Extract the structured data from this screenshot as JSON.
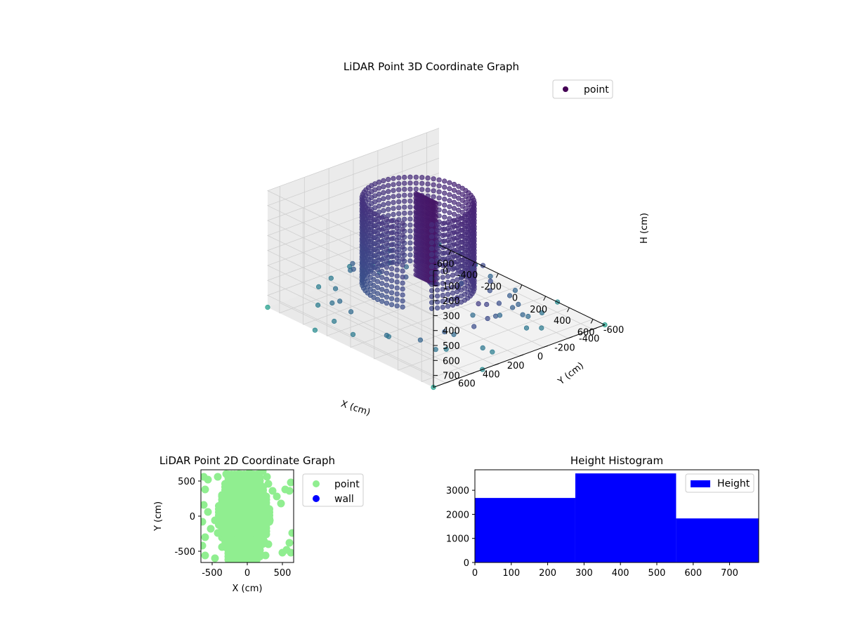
{
  "chart_data": [
    {
      "type": "scatter3d",
      "title": "LiDAR Point 3D Coordinate Graph",
      "xlabel": "X (cm)",
      "ylabel": "Y (cm)",
      "zlabel": "H (cm)",
      "xlim": [
        -700,
        700
      ],
      "ylim": [
        -700,
        700
      ],
      "zlim": [
        0,
        780
      ],
      "zinverted": true,
      "xticks": [
        -600,
        -400,
        -200,
        0,
        200,
        400,
        600
      ],
      "yticks": [
        -600,
        -400,
        -200,
        0,
        200,
        400,
        600
      ],
      "zticks": [
        0,
        100,
        200,
        300,
        400,
        500,
        600,
        700
      ],
      "grid": true,
      "legend": {
        "position": "top-right",
        "entries": [
          {
            "label": "point",
            "color": "#440154"
          }
        ]
      },
      "colormap": "viridis",
      "description_structure": {
        "cylinder_wall": {
          "center": [
            -50,
            100
          ],
          "radius": 330,
          "height_range": [
            0,
            560
          ],
          "arc_deg": [
            60,
            390
          ]
        },
        "slab": {
          "x_range": [
            -130,
            40
          ],
          "y": 40,
          "height_range": [
            0,
            560
          ]
        }
      },
      "points": [
        [
          430,
          120,
          260
        ],
        [
          520,
          60,
          330
        ],
        [
          600,
          -20,
          420
        ],
        [
          560,
          160,
          180
        ],
        [
          480,
          260,
          300
        ],
        [
          640,
          100,
          500
        ],
        [
          520,
          -120,
          560
        ],
        [
          590,
          -180,
          610
        ],
        [
          440,
          -60,
          630
        ],
        [
          380,
          300,
          650
        ],
        [
          660,
          340,
          420
        ],
        [
          620,
          220,
          690
        ],
        [
          700,
          -60,
          610
        ],
        [
          300,
          -380,
          700
        ],
        [
          150,
          -500,
          700
        ],
        [
          -80,
          -520,
          700
        ],
        [
          -250,
          -560,
          700
        ],
        [
          -420,
          -600,
          700
        ],
        [
          -600,
          -560,
          700
        ],
        [
          -700,
          -300,
          700
        ],
        [
          -690,
          40,
          700
        ],
        [
          -640,
          240,
          700
        ],
        [
          -520,
          320,
          700
        ],
        [
          -380,
          420,
          700
        ],
        [
          -440,
          250,
          560
        ],
        [
          -560,
          160,
          640
        ],
        [
          -620,
          -80,
          700
        ],
        [
          -480,
          -220,
          700
        ],
        [
          -320,
          -300,
          650
        ],
        [
          -180,
          -380,
          700
        ],
        [
          60,
          -380,
          700
        ],
        [
          220,
          -300,
          700
        ],
        [
          260,
          -160,
          650
        ],
        [
          330,
          -100,
          700
        ],
        [
          360,
          40,
          700
        ],
        [
          300,
          420,
          700
        ],
        [
          160,
          560,
          680
        ],
        [
          -100,
          600,
          610
        ],
        [
          -300,
          560,
          640
        ],
        [
          450,
          440,
          700
        ],
        [
          560,
          460,
          650
        ],
        [
          500,
          340,
          610
        ],
        [
          680,
          200,
          700
        ],
        [
          620,
          -260,
          700
        ],
        [
          420,
          -300,
          700
        ],
        [
          500,
          -380,
          680
        ],
        [
          150,
          -200,
          700
        ],
        [
          20,
          -150,
          700
        ],
        [
          -80,
          -260,
          700
        ],
        [
          -240,
          -180,
          700
        ],
        [
          -380,
          -120,
          700
        ],
        [
          -520,
          -40,
          700
        ],
        [
          -560,
          60,
          620
        ],
        [
          -500,
          200,
          560
        ],
        [
          -460,
          120,
          480
        ],
        [
          -600,
          380,
          700
        ],
        [
          -420,
          560,
          700
        ],
        [
          -200,
          640,
          700
        ],
        [
          0,
          680,
          700
        ],
        [
          240,
          620,
          640
        ]
      ],
      "outliers": [
        [
          -700,
          -700,
          780
        ],
        [
          -700,
          700,
          780
        ],
        [
          700,
          -700,
          780
        ],
        [
          700,
          700,
          780
        ],
        [
          -700,
          -300,
          780
        ],
        [
          700,
          300,
          780
        ],
        [
          -300,
          700,
          780
        ],
        [
          300,
          -700,
          780
        ]
      ]
    },
    {
      "type": "scatter",
      "title": "LiDAR Point 2D Coordinate Graph",
      "xlabel": "X (cm)",
      "ylabel": "Y (cm)",
      "xlim": [
        -660,
        660
      ],
      "ylim": [
        -660,
        660
      ],
      "xticks": [
        -500,
        0,
        500
      ],
      "yticks": [
        -500,
        0,
        500
      ],
      "legend": {
        "position": "outside-right",
        "entries": [
          {
            "label": "point",
            "color": "#90ee90"
          },
          {
            "label": "wall",
            "color": "#0000ff"
          }
        ]
      },
      "series": [
        {
          "name": "point",
          "color": "#90ee90",
          "points": [
            [
              -620,
              560
            ],
            [
              -560,
              520
            ],
            [
              -600,
              380
            ],
            [
              -620,
              160
            ],
            [
              -640,
              -80
            ],
            [
              -600,
              -300
            ],
            [
              -640,
              -420
            ],
            [
              -600,
              -560
            ],
            [
              -460,
              -600
            ],
            [
              -420,
              560
            ],
            [
              -300,
              600
            ],
            [
              -200,
              560
            ],
            [
              -120,
              600
            ],
            [
              30,
              620
            ],
            [
              160,
              600
            ],
            [
              220,
              640
            ],
            [
              280,
              560
            ],
            [
              300,
              460
            ],
            [
              360,
              360
            ],
            [
              420,
              280
            ],
            [
              480,
              180
            ],
            [
              540,
              380
            ],
            [
              600,
              360
            ],
            [
              620,
              480
            ],
            [
              640,
              -240
            ],
            [
              600,
              -380
            ],
            [
              560,
              -480
            ],
            [
              500,
              -520
            ],
            [
              620,
              -520
            ],
            [
              300,
              -400
            ],
            [
              260,
              -560
            ],
            [
              140,
              -600
            ],
            [
              0,
              -560
            ],
            [
              -120,
              -580
            ],
            [
              -260,
              -500
            ],
            [
              -360,
              -440
            ],
            [
              -420,
              -240
            ],
            [
              -460,
              -60
            ],
            [
              -400,
              120
            ],
            [
              -360,
              300
            ],
            [
              -300,
              440
            ],
            [
              -220,
              360
            ],
            [
              -120,
              200
            ],
            [
              -40,
              100
            ],
            [
              60,
              0
            ],
            [
              120,
              -120
            ],
            [
              180,
              -260
            ],
            [
              240,
              -360
            ],
            [
              80,
              280
            ],
            [
              200,
              380
            ],
            [
              -100,
              -300
            ],
            [
              -200,
              -140
            ],
            [
              260,
              100
            ],
            [
              320,
              -60
            ],
            [
              -560,
              60
            ],
            [
              -520,
              -180
            ]
          ]
        }
      ],
      "blob": {
        "x_range": [
          -450,
          350
        ],
        "y_range": [
          -620,
          620
        ]
      }
    },
    {
      "type": "bar",
      "title": "Height Histogram",
      "legend": {
        "position": "top-right",
        "entries": [
          {
            "label": "Height",
            "color": "#0000ff"
          }
        ]
      },
      "xlim": [
        0,
        780
      ],
      "ylim": [
        0,
        3850
      ],
      "xticks": [
        0,
        100,
        200,
        300,
        400,
        500,
        600,
        700
      ],
      "yticks": [
        0,
        1000,
        2000,
        3000
      ],
      "bins": [
        {
          "x0": 0,
          "x1": 276,
          "count": 2680
        },
        {
          "x0": 276,
          "x1": 553,
          "count": 3700
        },
        {
          "x0": 553,
          "x1": 780,
          "count": 1830
        }
      ],
      "color": "#0000ff"
    }
  ]
}
